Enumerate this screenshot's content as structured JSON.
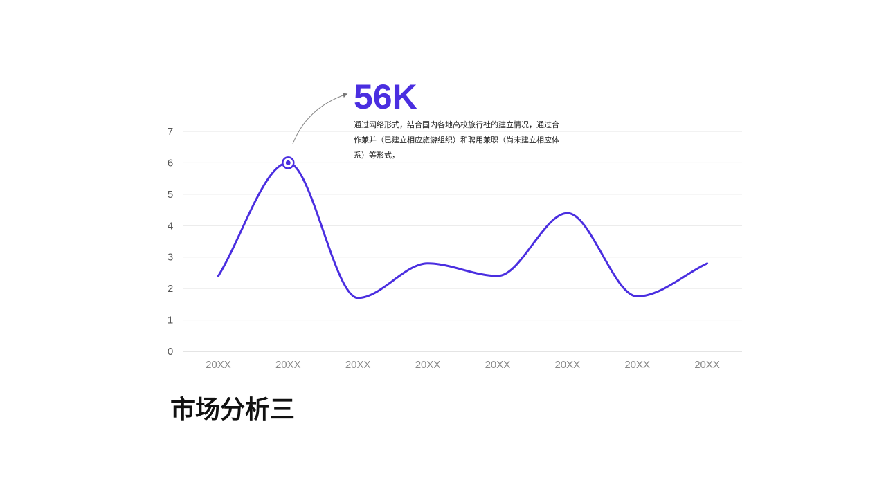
{
  "slide": {
    "title": "市场分析三"
  },
  "callout": {
    "value": "56K",
    "description": "通过网络形式，结合国内各地高校旅行社的建立情况，通过合作兼并（已建立相应旅游组织）和聘用兼职（尚未建立相应体系）等形式，"
  },
  "colors": {
    "accent": "#4a2ee0",
    "grid": "#e6e6e6",
    "axis_text": "#555555",
    "category_text": "#888888"
  },
  "chart_data": {
    "type": "line",
    "categories": [
      "20XX",
      "20XX",
      "20XX",
      "20XX",
      "20XX",
      "20XX",
      "20XX",
      "20XX"
    ],
    "series": [
      {
        "values": [
          2.4,
          6.0,
          1.7,
          2.8,
          2.4,
          4.4,
          1.75,
          2.8
        ]
      }
    ],
    "ylim": [
      0,
      7
    ],
    "yticks": [
      0,
      1,
      2,
      3,
      4,
      5,
      6,
      7
    ],
    "grid": true,
    "smooth": true,
    "highlight_index": 1
  }
}
